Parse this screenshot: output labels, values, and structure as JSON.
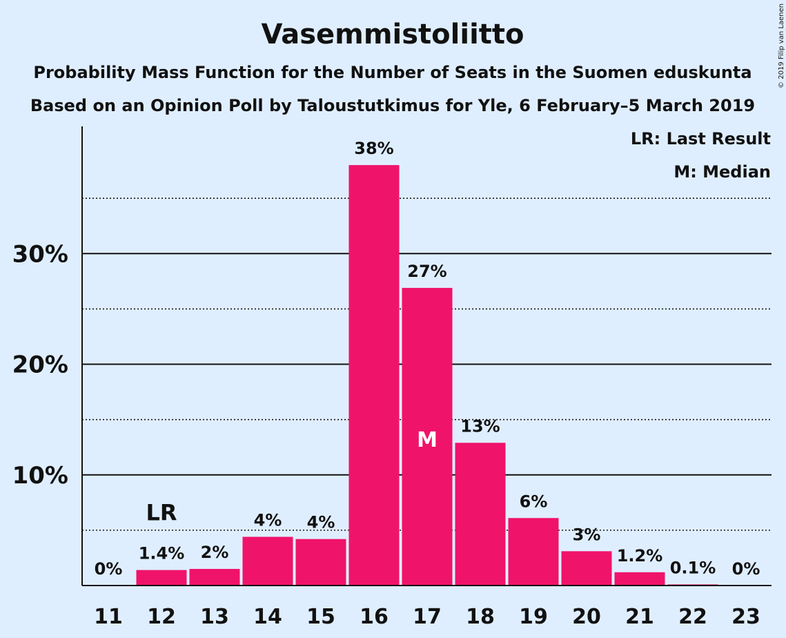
{
  "chart_data": {
    "type": "bar",
    "title": "Vasemmistoliitto",
    "subtitle": "Probability Mass Function for the Number of Seats in the Suomen eduskunta",
    "subtitle2": "Based on an Opinion Poll by Taloustutkimus for Yle, 6 February–5 March 2019",
    "credit": "© 2019 Filip van Laenen",
    "categories": [
      "11",
      "12",
      "13",
      "14",
      "15",
      "16",
      "17",
      "18",
      "19",
      "20",
      "21",
      "22",
      "23"
    ],
    "values": [
      0,
      1.4,
      1.5,
      4.4,
      4.2,
      38,
      26.9,
      12.9,
      6.1,
      3.1,
      1.2,
      0.1,
      0
    ],
    "data_labels": [
      "0%",
      "1.4%",
      "2%",
      "4%",
      "4%",
      "38%",
      "27%",
      "13%",
      "6%",
      "3%",
      "1.2%",
      "0.1%",
      "0%"
    ],
    "ylim": [
      0,
      41.5
    ],
    "yticks": [
      10,
      20,
      30
    ],
    "ytick_labels": [
      "10%",
      "20%",
      "30%"
    ],
    "minor_gridlines": [
      5,
      15,
      25,
      35
    ],
    "last_result_category": "12",
    "last_result_marker": "LR",
    "median_category": "17",
    "median_marker": "M",
    "legend": [
      "LR: Last Result",
      "M: Median"
    ],
    "legend_position": "top-right",
    "bar_color": "#f0136a",
    "background_color": "#dfeeff"
  }
}
